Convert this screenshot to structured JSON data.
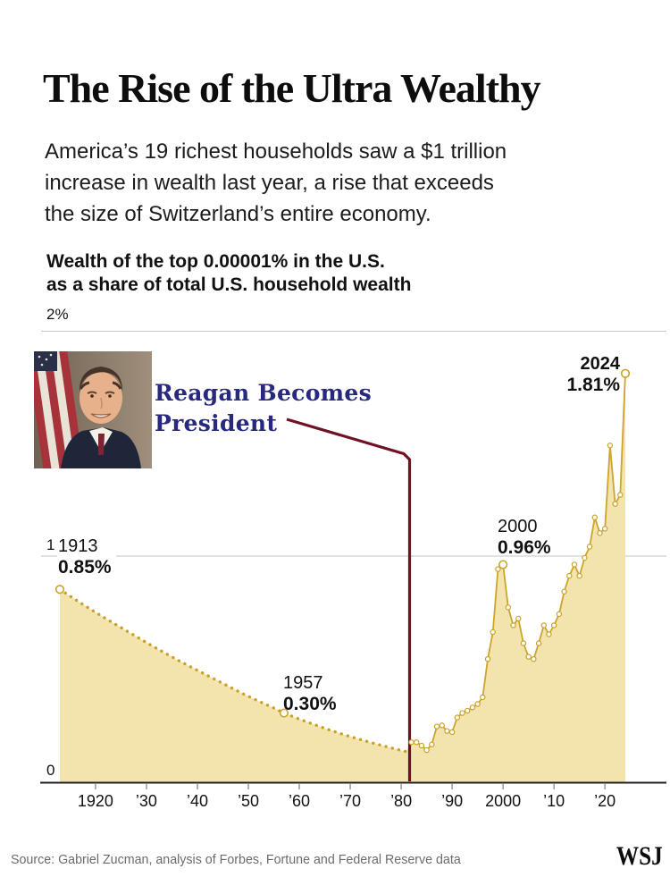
{
  "header": {
    "title": "The Rise of the Ultra Wealthy",
    "subtitle_lines": [
      "America’s 19 richest households saw a $1 trillion",
      "increase in wealth last year, a rise that exceeds",
      "the size of Switzerland’s entire economy."
    ]
  },
  "chart": {
    "heading_lines": [
      "Wealth of the top 0.00001% in the U.S.",
      "as a share of total U.S. household wealth"
    ]
  },
  "chart_data": {
    "type": "area",
    "title": "Wealth of the top 0.00001% in the U.S. as a share of total U.S. household wealth",
    "unit": "percent of total U.S. household wealth",
    "xlim": [
      1913,
      2024
    ],
    "ylim": [
      0,
      2
    ],
    "grid": "horizontal",
    "y_tick_values": [
      0,
      1,
      2
    ],
    "y_tick_labels": [
      "0",
      "1",
      "2%"
    ],
    "x_tick_years": [
      1920,
      1930,
      1940,
      1950,
      1960,
      1970,
      1980,
      1990,
      2000,
      2010,
      2020
    ],
    "x_tick_labels": [
      "1920",
      "’30",
      "’40",
      "’50",
      "’60",
      "’70",
      "’80",
      "’90",
      "2000",
      "’10",
      "’20"
    ],
    "series": [
      {
        "name": "Estimated share (dotted)",
        "style": "dotted",
        "points": [
          [
            1913,
            0.85
          ],
          [
            1916,
            0.805
          ],
          [
            1919,
            0.762
          ],
          [
            1922,
            0.72
          ],
          [
            1925,
            0.68
          ],
          [
            1928,
            0.64
          ],
          [
            1931,
            0.6
          ],
          [
            1934,
            0.562
          ],
          [
            1937,
            0.525
          ],
          [
            1940,
            0.49
          ],
          [
            1943,
            0.455
          ],
          [
            1946,
            0.42
          ],
          [
            1949,
            0.385
          ],
          [
            1952,
            0.353
          ],
          [
            1955,
            0.322
          ],
          [
            1957,
            0.3
          ],
          [
            1960,
            0.273
          ],
          [
            1963,
            0.248
          ],
          [
            1966,
            0.224
          ],
          [
            1969,
            0.202
          ],
          [
            1972,
            0.182
          ],
          [
            1975,
            0.163
          ],
          [
            1978,
            0.145
          ],
          [
            1981,
            0.128
          ]
        ]
      },
      {
        "name": "Annual share (solid, marked)",
        "style": "solid-markers",
        "points": [
          [
            1982,
            0.17
          ],
          [
            1983,
            0.17
          ],
          [
            1984,
            0.155
          ],
          [
            1985,
            0.135
          ],
          [
            1986,
            0.16
          ],
          [
            1987,
            0.24
          ],
          [
            1988,
            0.245
          ],
          [
            1989,
            0.22
          ],
          [
            1990,
            0.215
          ],
          [
            1991,
            0.28
          ],
          [
            1992,
            0.3
          ],
          [
            1993,
            0.31
          ],
          [
            1994,
            0.325
          ],
          [
            1995,
            0.34
          ],
          [
            1996,
            0.37
          ],
          [
            1997,
            0.54
          ],
          [
            1998,
            0.66
          ],
          [
            1999,
            0.94
          ],
          [
            2000,
            0.96
          ],
          [
            2001,
            0.77
          ],
          [
            2002,
            0.69
          ],
          [
            2003,
            0.72
          ],
          [
            2004,
            0.61
          ],
          [
            2005,
            0.55
          ],
          [
            2006,
            0.54
          ],
          [
            2007,
            0.61
          ],
          [
            2008,
            0.69
          ],
          [
            2009,
            0.65
          ],
          [
            2010,
            0.69
          ],
          [
            2011,
            0.74
          ],
          [
            2012,
            0.84
          ],
          [
            2013,
            0.91
          ],
          [
            2014,
            0.96
          ],
          [
            2015,
            0.91
          ],
          [
            2016,
            0.99
          ],
          [
            2017,
            1.04
          ],
          [
            2018,
            1.17
          ],
          [
            2019,
            1.1
          ],
          [
            2020,
            1.12
          ],
          [
            2021,
            1.49
          ],
          [
            2022,
            1.23
          ],
          [
            2023,
            1.27
          ],
          [
            2024,
            1.81
          ]
        ]
      }
    ],
    "point_labels": [
      {
        "year": 1913,
        "value": 0.85,
        "year_label": "1913",
        "value_label": "0.85%"
      },
      {
        "year": 1957,
        "value": 0.3,
        "year_label": "1957",
        "value_label": "0.30%"
      },
      {
        "year": 2000,
        "value": 0.96,
        "year_label": "2000",
        "value_label": "0.96%"
      },
      {
        "year": 2024,
        "value": 1.81,
        "year_label": "2024",
        "value_label": "1.81%"
      }
    ],
    "event": {
      "line1": "Reagan Becomes",
      "line2": "President",
      "year": 1981
    }
  },
  "footer": {
    "source": "Source: Gabriel Zucman, analysis of Forbes, Fortune and Federal Reserve data",
    "logo": "WSJ"
  },
  "colors": {
    "area_fill": "#f3e4ae",
    "line_gold": "#cda42c",
    "dot_gold": "#c9a02a",
    "marker_stroke": "#c9a22b",
    "event_line": "#6e1224",
    "event_text": "#28287f",
    "grid": "#c6c6c6",
    "axis": "#1f1f1f",
    "tick": "#999999"
  }
}
